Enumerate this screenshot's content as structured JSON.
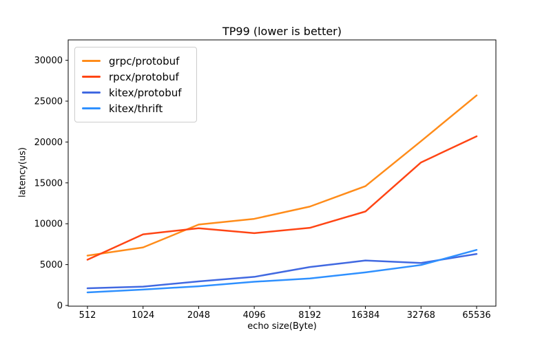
{
  "chart_data": {
    "type": "line",
    "title": "TP99 (lower is better)",
    "xlabel": "echo size(Byte)",
    "ylabel": "latency(us)",
    "categories": [
      512,
      1024,
      2048,
      4096,
      8192,
      16384,
      32768,
      65536
    ],
    "xticklabels": [
      "512",
      "1024",
      "2048",
      "4096",
      "8192",
      "16384",
      "32768",
      "65536"
    ],
    "yticks": [
      0,
      5000,
      10000,
      15000,
      20000,
      25000,
      30000
    ],
    "ylim": [
      0,
      32500
    ],
    "grid": false,
    "legend_position": "upper left",
    "axis_color": "#000000",
    "background_color": "#ffffff",
    "series": [
      {
        "name": "grpc/protobuf",
        "color": "#ff8c1a",
        "values": [
          6100,
          7100,
          9900,
          10600,
          12100,
          14600,
          20100,
          25700
        ]
      },
      {
        "name": "rpcx/protobuf",
        "color": "#ff4514",
        "values": [
          5600,
          8700,
          9450,
          8850,
          9500,
          11500,
          17500,
          20700
        ]
      },
      {
        "name": "kitex/protobuf",
        "color": "#4169e1",
        "values": [
          2100,
          2300,
          2950,
          3500,
          4700,
          5500,
          5200,
          6300
        ]
      },
      {
        "name": "kitex/thrift",
        "color": "#2e90ff",
        "values": [
          1600,
          1950,
          2350,
          2900,
          3300,
          4050,
          4950,
          6800
        ]
      }
    ]
  }
}
